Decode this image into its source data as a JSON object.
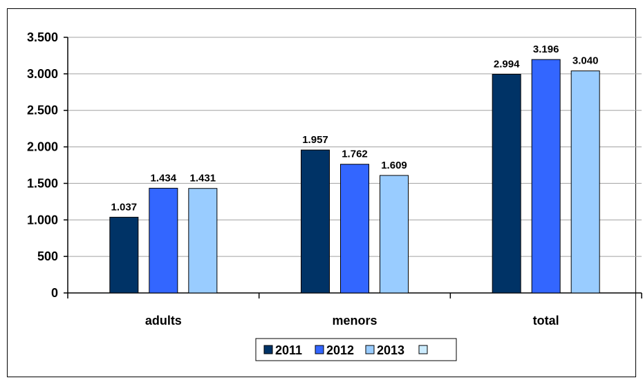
{
  "chart_data": {
    "type": "bar",
    "categories": [
      "adults",
      "menors",
      "total"
    ],
    "series": [
      {
        "name": "2011",
        "values": [
          1037,
          1957,
          2994
        ],
        "color": "#003366",
        "labels": [
          "1.037",
          "1.957",
          "2.994"
        ]
      },
      {
        "name": "2012",
        "values": [
          1434,
          1762,
          3196
        ],
        "color": "#3366FF",
        "labels": [
          "1.434",
          "1.762",
          "3.196"
        ]
      },
      {
        "name": "2013",
        "values": [
          1431,
          1609,
          3040
        ],
        "color": "#99CCFF",
        "labels": [
          "1.431",
          "1.609",
          "3.040"
        ]
      }
    ],
    "legend_extra_swatch_color": "#CCECFF",
    "ylim": [
      0,
      3500
    ],
    "yticks": [
      0,
      500,
      1000,
      1500,
      2000,
      2500,
      3000,
      3500
    ],
    "ytick_labels": [
      "0",
      "500",
      "1.000",
      "1.500",
      "2.000",
      "2.500",
      "3.000",
      "3.500"
    ],
    "grid": true,
    "legend_position": "bottom",
    "title": "",
    "xlabel": "",
    "ylabel": ""
  }
}
